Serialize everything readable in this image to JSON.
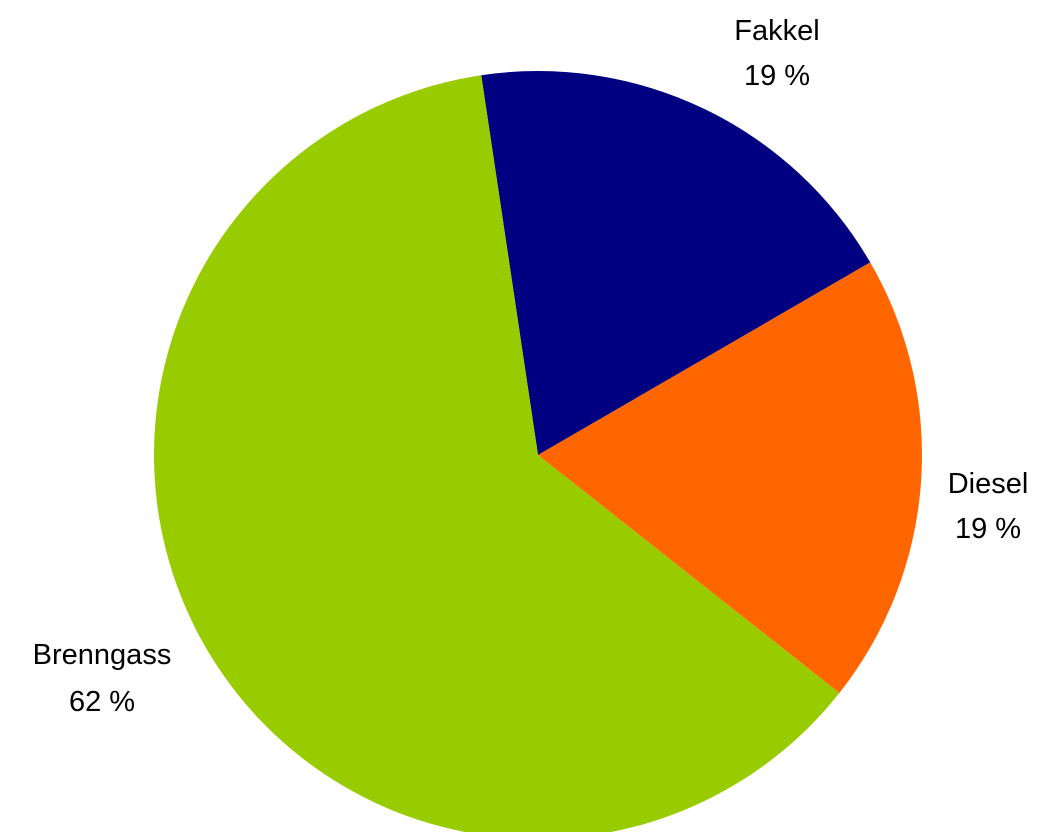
{
  "chart_data": {
    "type": "pie",
    "slices": [
      {
        "name": "Fakkel",
        "value": 19,
        "value_label": "19 %",
        "color": "#000080"
      },
      {
        "name": "Diesel",
        "value": 19,
        "value_label": "19 %",
        "color": "#FF6600"
      },
      {
        "name": "Brenngass",
        "value": 62,
        "value_label": "62 %",
        "color": "#99CC00"
      }
    ],
    "start_angle_deg": -8.5,
    "direction": "clockwise",
    "legend": "none",
    "data_labels": "outside-slices"
  }
}
